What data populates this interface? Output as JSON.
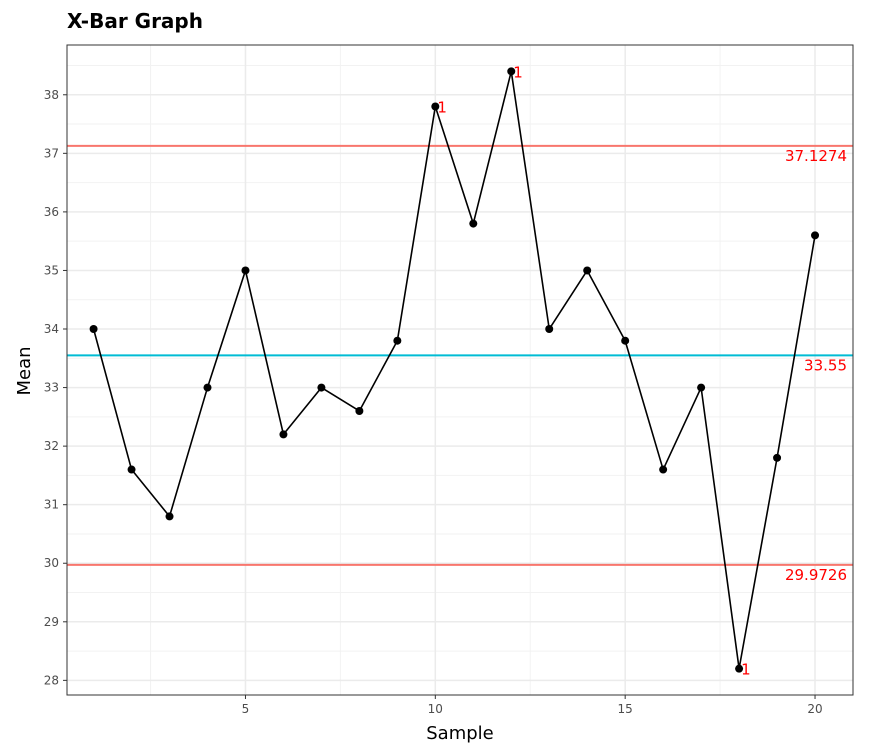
{
  "chart_data": {
    "type": "line",
    "title": "X-Bar Graph",
    "xlabel": "Sample",
    "ylabel": "Mean",
    "xlim": [
      0.3,
      21
    ],
    "ylim": [
      27.75,
      38.85
    ],
    "x_ticks": [
      5,
      10,
      15,
      20
    ],
    "y_ticks": [
      28,
      29,
      30,
      31,
      32,
      33,
      34,
      35,
      36,
      37,
      38
    ],
    "grid": true,
    "x": [
      1,
      2,
      3,
      4,
      5,
      6,
      7,
      8,
      9,
      10,
      11,
      12,
      13,
      14,
      15,
      16,
      17,
      18,
      19,
      20
    ],
    "values": [
      34.0,
      31.6,
      30.8,
      33.0,
      35.0,
      32.2,
      33.0,
      32.6,
      33.8,
      37.8,
      35.8,
      38.4,
      34.0,
      35.0,
      33.8,
      31.6,
      33.0,
      28.2,
      31.8,
      35.6
    ],
    "series_color": "#000000",
    "control_limits": [
      {
        "label": "37.1274",
        "value": 37.1274,
        "color": "#f8766d",
        "role": "ucl"
      },
      {
        "label": "33.55",
        "value": 33.55,
        "color": "#00bcd4",
        "role": "center"
      },
      {
        "label": "29.9726",
        "value": 29.9726,
        "color": "#f8766d",
        "role": "lcl"
      }
    ],
    "limit_text_color": "#ff0000",
    "flagged": [
      {
        "x": 10,
        "y": 37.8,
        "label": "1"
      },
      {
        "x": 12,
        "y": 38.4,
        "label": "1"
      },
      {
        "x": 18,
        "y": 28.2,
        "label": "1"
      }
    ]
  }
}
